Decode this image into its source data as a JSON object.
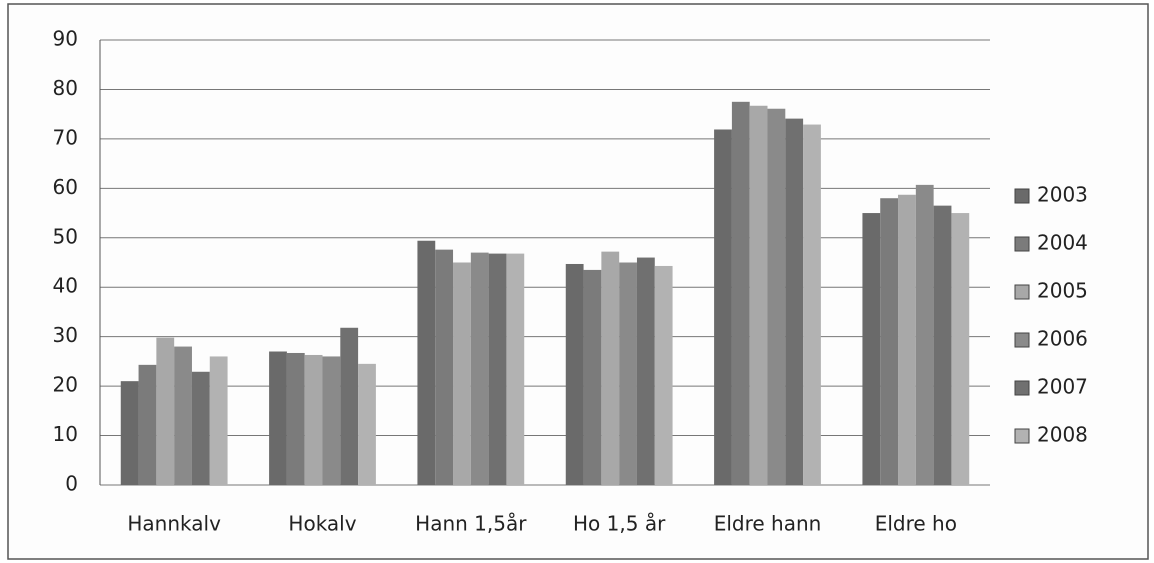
{
  "chart_data": {
    "type": "bar",
    "categories": [
      "Hannkalv",
      "Hokalv",
      "Hann 1,5år",
      "Ho 1,5 år",
      "Eldre hann",
      "Eldre ho"
    ],
    "series": [
      {
        "name": "2003",
        "color": "#6a6a6a",
        "values": [
          21,
          27,
          49.4,
          44.7,
          71.9,
          55
        ]
      },
      {
        "name": "2004",
        "color": "#7b7b7b",
        "values": [
          24.3,
          26.7,
          47.6,
          43.5,
          77.5,
          58
        ]
      },
      {
        "name": "2005",
        "color": "#a8a8a8",
        "values": [
          29.8,
          26.3,
          45,
          47.2,
          76.7,
          58.7
        ]
      },
      {
        "name": "2006",
        "color": "#8a8a8a",
        "values": [
          28,
          26,
          47,
          45,
          76.1,
          60.7
        ]
      },
      {
        "name": "2007",
        "color": "#707070",
        "values": [
          22.9,
          31.8,
          46.8,
          46,
          74.1,
          56.5
        ]
      },
      {
        "name": "2008",
        "color": "#b2b2b2",
        "values": [
          26,
          24.5,
          46.8,
          44.3,
          72.9,
          55
        ]
      }
    ],
    "ylim": [
      0,
      90
    ],
    "yticks": [
      0,
      10,
      20,
      30,
      40,
      50,
      60,
      70,
      80,
      90
    ],
    "grid": true,
    "legend": "right"
  }
}
